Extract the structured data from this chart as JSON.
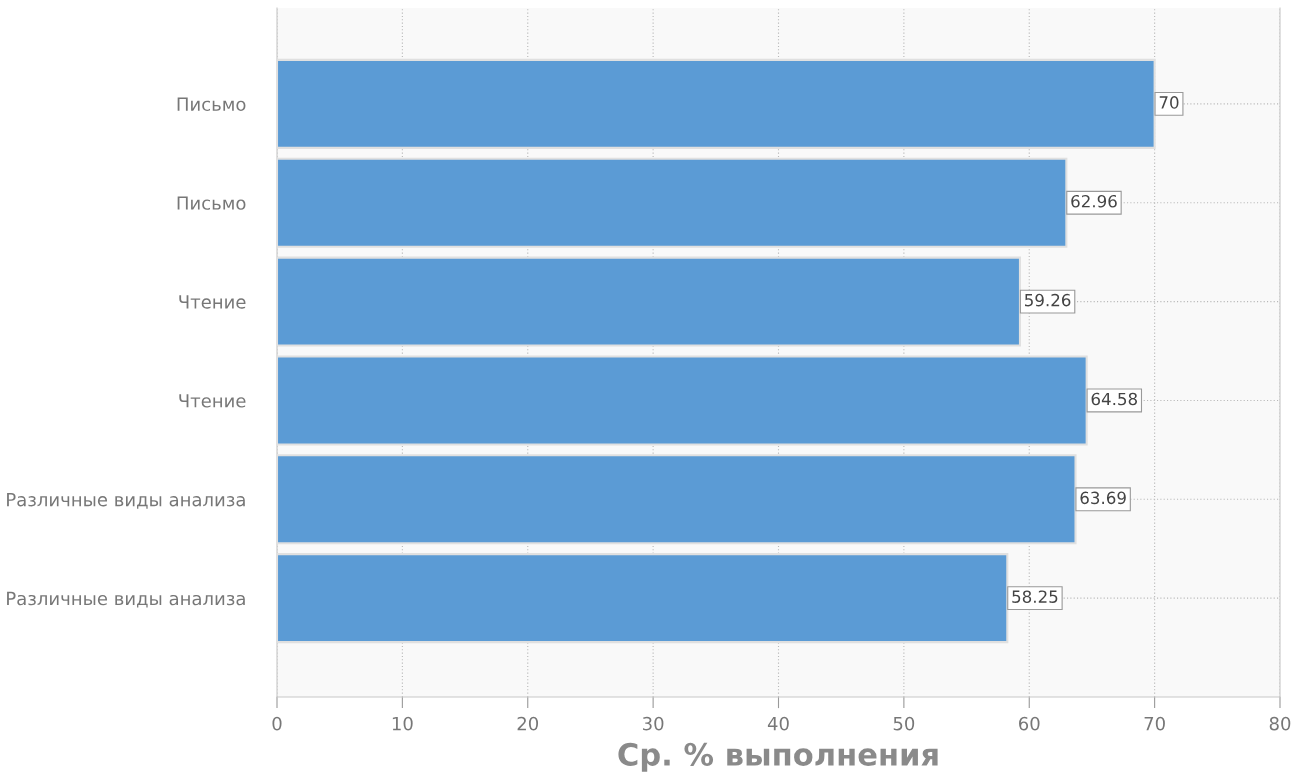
{
  "chart_data": {
    "type": "bar",
    "orientation": "horizontal",
    "xlabel": "Ср. % выполнения",
    "categories": [
      "Письмо",
      "Письмо",
      "Чтение",
      "Чтение",
      "Различные виды анализа",
      "Различные виды анализа"
    ],
    "values": [
      70,
      62.96,
      59.26,
      64.58,
      63.69,
      58.25
    ],
    "color": "#5b9bd5",
    "data_labels": true,
    "xlim": [
      0,
      80
    ],
    "xticks": [
      0,
      10,
      20,
      30,
      40,
      50,
      60,
      70,
      80
    ],
    "grid": true
  }
}
